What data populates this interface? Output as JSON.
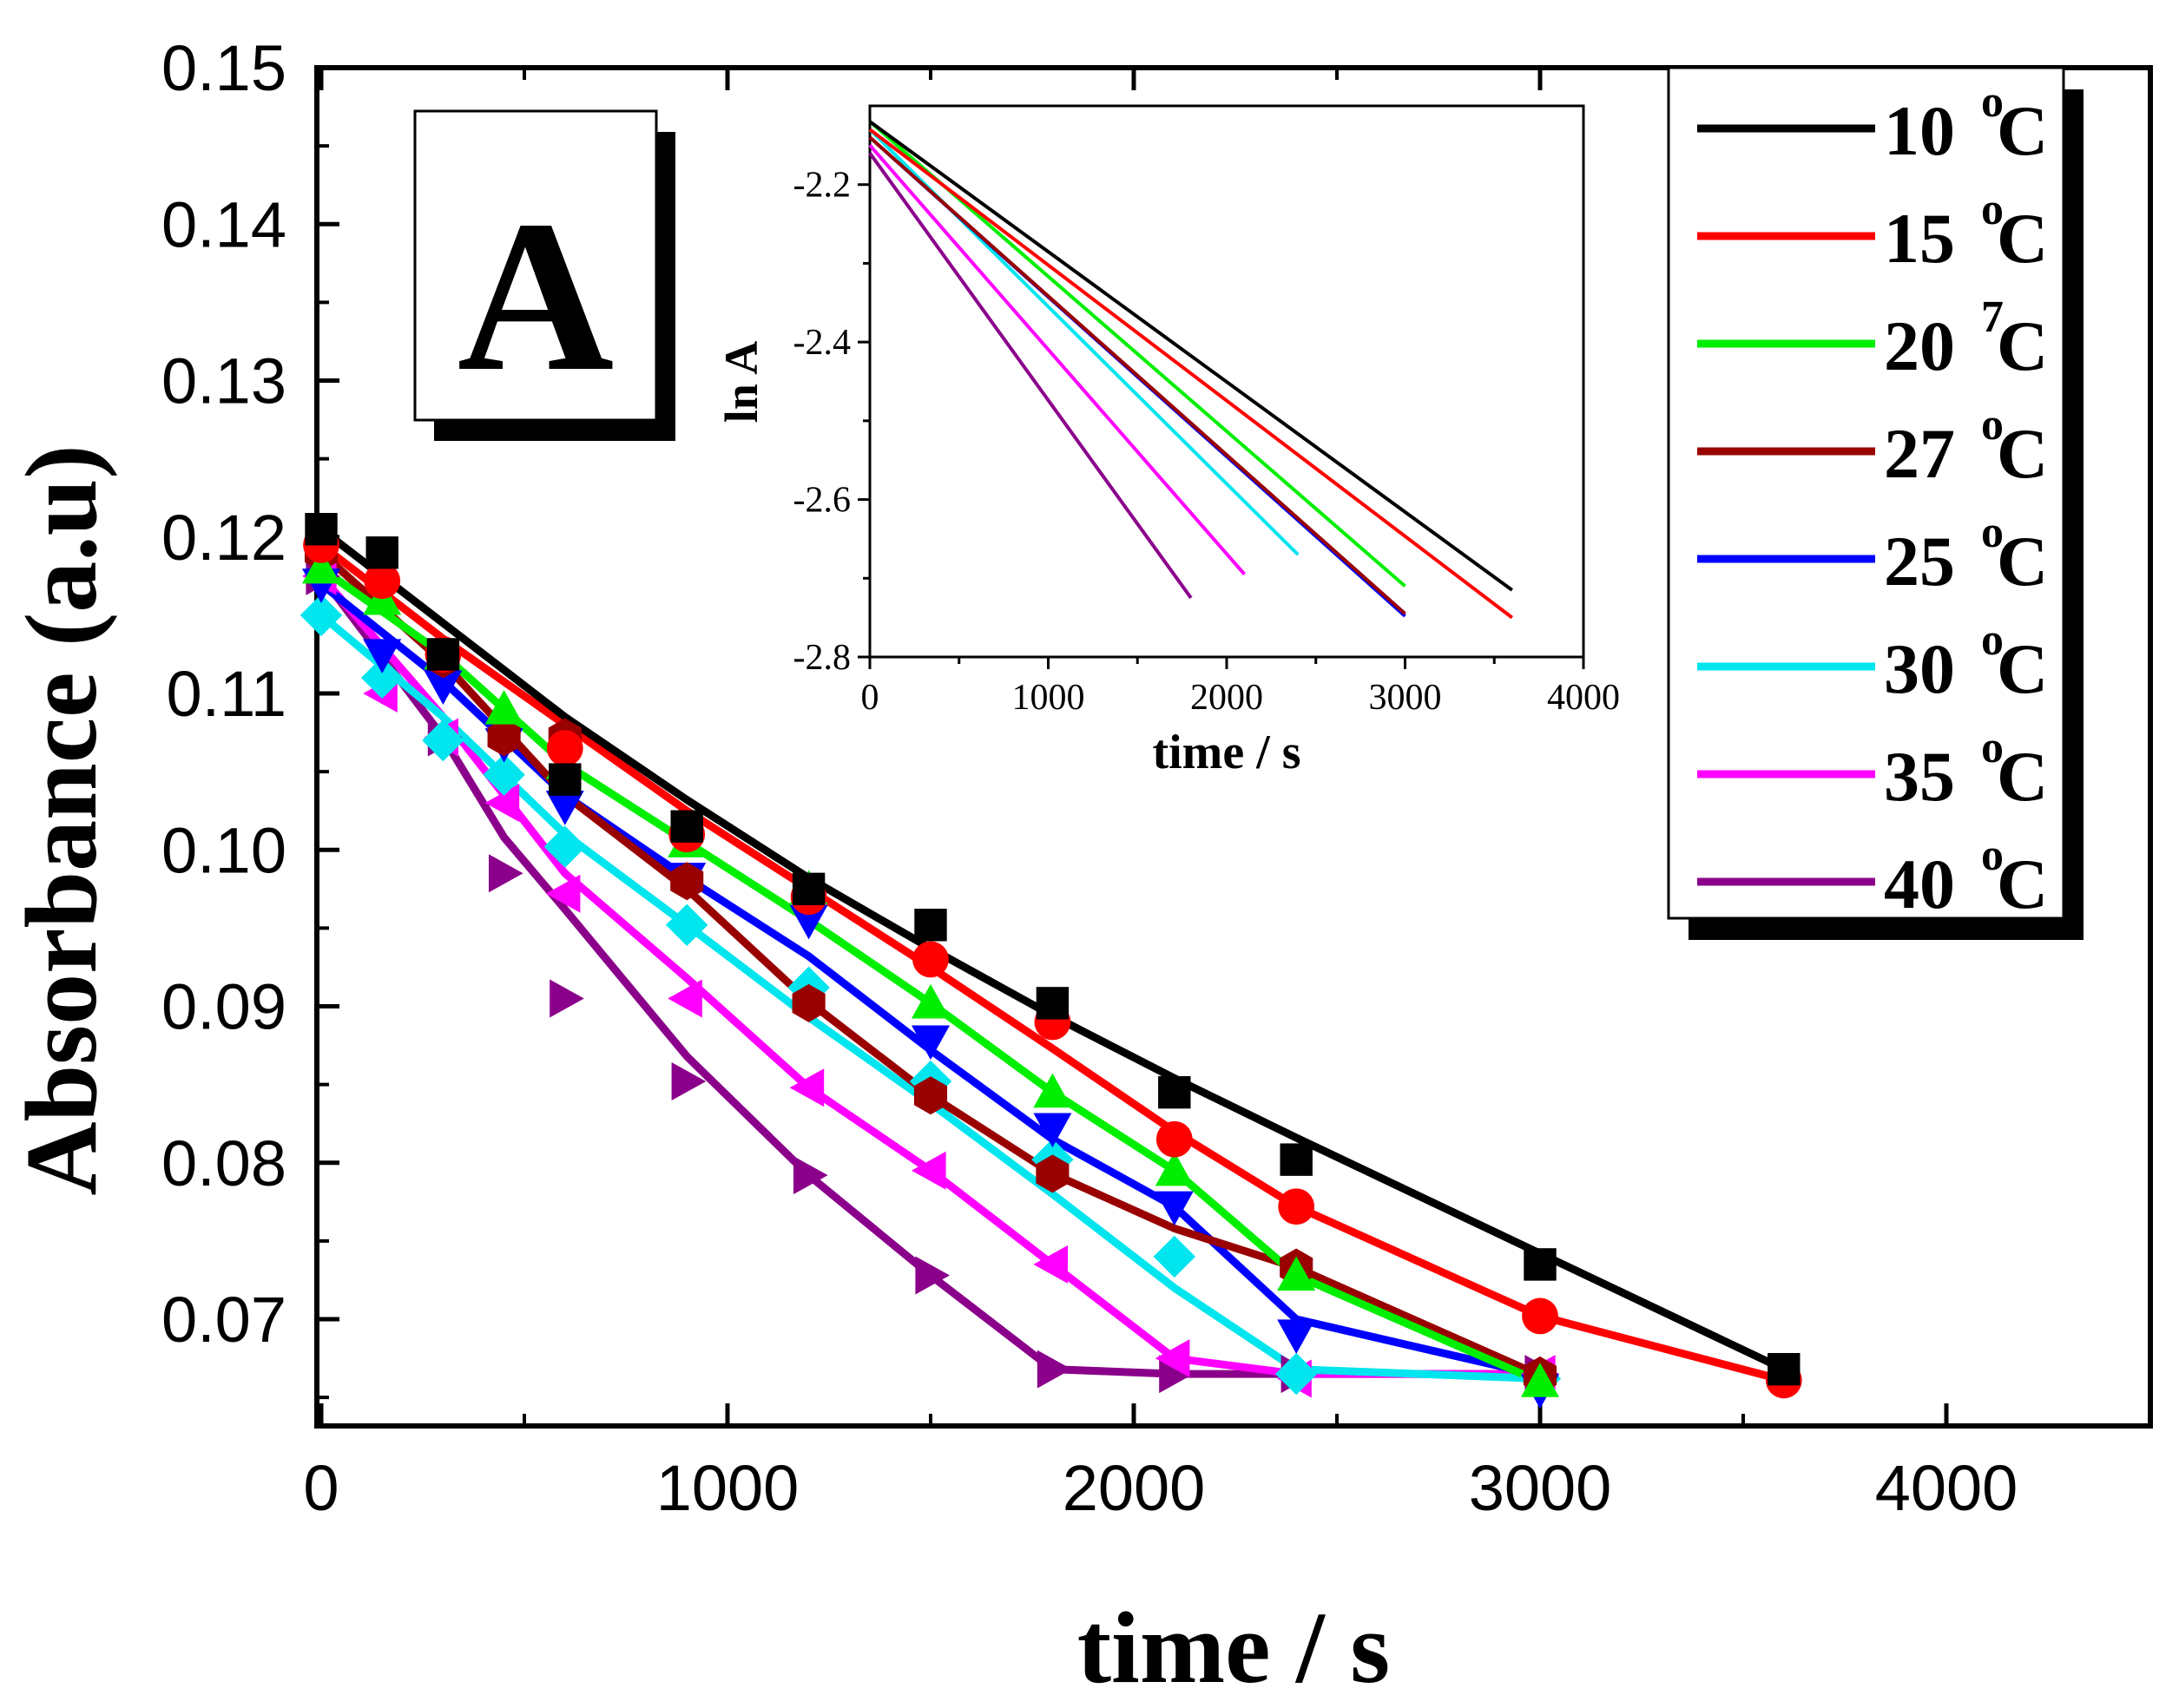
{
  "chart_data": [
    {
      "type": "line",
      "panel_label": "A",
      "xlabel": "time / s",
      "ylabel": "Absorbance (a.u)",
      "xlim": [
        0,
        4500
      ],
      "ylim": [
        0.0635,
        0.15
      ],
      "x_ticks": [
        0,
        1000,
        2000,
        3000,
        4000
      ],
      "x_tick_labels": [
        "0",
        "1000",
        "2000",
        "3000",
        "4000"
      ],
      "y_ticks": [
        0.07,
        0.08,
        0.09,
        0.1,
        0.11,
        0.12,
        0.13,
        0.14,
        0.15
      ],
      "y_tick_labels": [
        "0.07",
        "0.08",
        "0.09",
        "0.10",
        "0.11",
        "0.12",
        "0.13",
        "0.14",
        "0.15"
      ],
      "legend_position": "top-right",
      "series": [
        {
          "name": "10",
          "unit": "C",
          "sup": "o",
          "color": "#000000",
          "marker": "square",
          "x": [
            0,
            150,
            300,
            600,
            900,
            1200,
            1500,
            1800,
            2100,
            2400,
            3000,
            3600
          ],
          "y": [
            0.1205,
            0.119,
            0.1125,
            0.1045,
            0.1015,
            0.0975,
            0.0952,
            0.0902,
            0.0845,
            0.0802,
            0.0735,
            0.0668
          ],
          "fit_x": [
            0,
            300,
            600,
            900,
            1200,
            1500,
            1800,
            2100,
            2400,
            3000,
            3600
          ],
          "fit_y": [
            0.1205,
            0.1145,
            0.1085,
            0.1032,
            0.0982,
            0.0937,
            0.0894,
            0.0854,
            0.0816,
            0.0742,
            0.0668
          ]
        },
        {
          "name": "15",
          "unit": "C",
          "sup": "o",
          "color": "#ff0000",
          "marker": "circle",
          "x": [
            0,
            150,
            300,
            600,
            900,
            1200,
            1500,
            1800,
            2100,
            2400,
            3000,
            3600
          ],
          "y": [
            0.1195,
            0.1172,
            0.1125,
            0.1065,
            0.101,
            0.097,
            0.093,
            0.089,
            0.0815,
            0.0772,
            0.0702,
            0.0661
          ],
          "fit_x": [
            0,
            300,
            600,
            900,
            1200,
            1500,
            1800,
            2100,
            2400,
            3000,
            3600
          ],
          "fit_y": [
            0.1195,
            0.1135,
            0.108,
            0.1025,
            0.0975,
            0.0925,
            0.0873,
            0.082,
            0.0772,
            0.0702,
            0.0661
          ]
        },
        {
          "name": "20",
          "unit": "C",
          "sup": "7",
          "color": "#00ee00",
          "marker": "triangle-up",
          "x": [
            0,
            150,
            300,
            450,
            600,
            900,
            1200,
            1500,
            1800,
            2100,
            2400,
            3000
          ],
          "y": [
            0.118,
            0.116,
            0.1125,
            0.109,
            0.1055,
            0.1005,
            0.0975,
            0.0902,
            0.0845,
            0.0795,
            0.0728,
            0.066
          ],
          "fit_x": [
            0,
            300,
            600,
            900,
            1200,
            1500,
            1800,
            2100,
            2400,
            3000
          ],
          "fit_y": [
            0.118,
            0.1125,
            0.1055,
            0.1005,
            0.0955,
            0.0902,
            0.0845,
            0.0795,
            0.0728,
            0.066
          ]
        },
        {
          "name": "27",
          "unit": "C",
          "sup": "o",
          "color": "#990000",
          "marker": "hexagon",
          "x": [
            0,
            300,
            450,
            600,
            900,
            1200,
            1500,
            1800,
            2400,
            3000
          ],
          "y": [
            0.119,
            0.1122,
            0.1072,
            0.1072,
            0.098,
            0.0902,
            0.0843,
            0.0793,
            0.0733,
            0.0664
          ],
          "fit_x": [
            0,
            300,
            600,
            900,
            1200,
            1500,
            1800,
            2100,
            2400,
            3000
          ],
          "fit_y": [
            0.119,
            0.112,
            0.1035,
            0.0975,
            0.0903,
            0.0843,
            0.0793,
            0.0758,
            0.0733,
            0.0664
          ]
        },
        {
          "name": "25",
          "unit": "C",
          "sup": "o",
          "color": "#0000ff",
          "marker": "triangle-down",
          "x": [
            0,
            150,
            300,
            450,
            600,
            900,
            1200,
            1500,
            1800,
            2100,
            2400,
            3000
          ],
          "y": [
            0.117,
            0.1125,
            0.1105,
            0.1068,
            0.1028,
            0.0982,
            0.0955,
            0.0878,
            0.0822,
            0.0772,
            0.069,
            0.0655
          ],
          "fit_x": [
            0,
            300,
            600,
            900,
            1200,
            1500,
            1800,
            2100,
            2400,
            3000
          ],
          "fit_y": [
            0.117,
            0.1108,
            0.1035,
            0.0982,
            0.0932,
            0.0872,
            0.0815,
            0.0772,
            0.07,
            0.0664
          ]
        },
        {
          "name": "30",
          "unit": "C",
          "sup": "o",
          "color": "#00e5ee",
          "marker": "diamond",
          "x": [
            0,
            150,
            300,
            450,
            600,
            900,
            1200,
            1500,
            1800,
            2100,
            2400,
            3000
          ],
          "y": [
            0.115,
            0.111,
            0.107,
            0.1048,
            0.1002,
            0.0952,
            0.0912,
            0.0852,
            0.0802,
            0.074,
            0.0665,
            0.0662
          ],
          "fit_x": [
            0,
            300,
            600,
            900,
            1200,
            1500,
            1800,
            2100,
            2400,
            3000
          ],
          "fit_y": [
            0.115,
            0.1085,
            0.101,
            0.0952,
            0.0893,
            0.0838,
            0.078,
            0.072,
            0.0668,
            0.0662
          ]
        },
        {
          "name": "35",
          "unit": "C",
          "sup": "o",
          "color": "#ff00ff",
          "marker": "triangle-left",
          "x": [
            0,
            150,
            300,
            450,
            600,
            900,
            1200,
            1500,
            1800,
            2100,
            2400,
            3000
          ],
          "y": [
            0.1175,
            0.11,
            0.1072,
            0.103,
            0.0972,
            0.0905,
            0.0848,
            0.0795,
            0.0735,
            0.0675,
            0.0662,
            0.0665
          ],
          "fit_x": [
            0,
            300,
            600,
            900,
            1200,
            1500,
            1800,
            2100,
            2400,
            3000
          ],
          "fit_y": [
            0.1175,
            0.1085,
            0.0985,
            0.0918,
            0.0848,
            0.0795,
            0.0735,
            0.0675,
            0.0665,
            0.0665
          ]
        },
        {
          "name": "40",
          "unit": "C",
          "sup": "o",
          "color": "#8b008b",
          "marker": "triangle-right",
          "x": [
            0,
            300,
            450,
            600,
            900,
            1200,
            1500,
            1800,
            2100,
            2400,
            3000
          ],
          "y": [
            0.1175,
            0.1072,
            0.0985,
            0.0905,
            0.0852,
            0.0792,
            0.0728,
            0.0668,
            0.0665,
            0.0665,
            0.0665
          ],
          "fit_x": [
            0,
            300,
            450,
            600,
            900,
            1200,
            1500,
            1800,
            2100,
            2400,
            3000
          ],
          "fit_y": [
            0.1175,
            0.1072,
            0.1008,
            0.0962,
            0.0868,
            0.0792,
            0.0728,
            0.0668,
            0.0665,
            0.0665,
            0.0665
          ]
        }
      ]
    },
    {
      "type": "line",
      "role": "inset",
      "xlabel": "time / s",
      "ylabel": "ln A",
      "xlim": [
        0,
        4000
      ],
      "ylim": [
        -2.8,
        -2.1
      ],
      "x_ticks": [
        0,
        1000,
        2000,
        3000,
        4000
      ],
      "x_tick_labels": [
        "0",
        "1000",
        "2000",
        "3000",
        "4000"
      ],
      "y_ticks": [
        -2.8,
        -2.6,
        -2.4,
        -2.2
      ],
      "y_tick_labels": [
        "-2.8",
        "-2.6",
        "-2.4",
        "-2.2"
      ],
      "series": [
        {
          "name": "10",
          "color": "#000000",
          "x": [
            0,
            3600
          ],
          "y": [
            -2.12,
            -2.715
          ]
        },
        {
          "name": "15",
          "color": "#ff0000",
          "x": [
            0,
            3600
          ],
          "y": [
            -2.13,
            -2.75
          ]
        },
        {
          "name": "20",
          "color": "#00ee00",
          "x": [
            0,
            3000
          ],
          "y": [
            -2.12,
            -2.71
          ]
        },
        {
          "name": "27",
          "color": "#990000",
          "x": [
            0,
            3000
          ],
          "y": [
            -2.14,
            -2.745
          ]
        },
        {
          "name": "25",
          "color": "#0000ff",
          "x": [
            0,
            3000
          ],
          "y": [
            -2.14,
            -2.748
          ]
        },
        {
          "name": "30",
          "color": "#00e5ee",
          "x": [
            0,
            2400
          ],
          "y": [
            -2.13,
            -2.67
          ]
        },
        {
          "name": "35",
          "color": "#ff00ff",
          "x": [
            0,
            2100
          ],
          "y": [
            -2.15,
            -2.695
          ]
        },
        {
          "name": "40",
          "color": "#8b008b",
          "x": [
            0,
            1800
          ],
          "y": [
            -2.16,
            -2.725
          ]
        }
      ]
    }
  ]
}
